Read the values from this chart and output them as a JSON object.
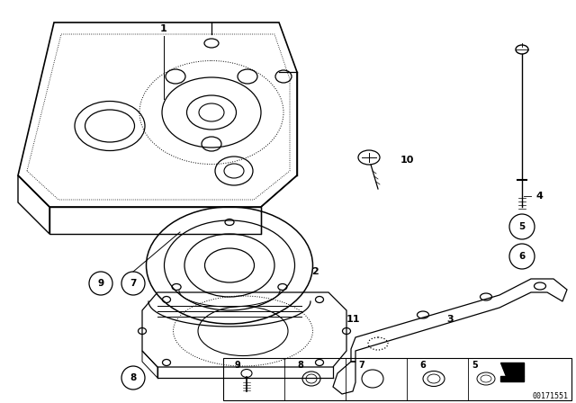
{
  "bg_color": "#ffffff",
  "line_color": "#000000",
  "part_number_text": "00171551"
}
